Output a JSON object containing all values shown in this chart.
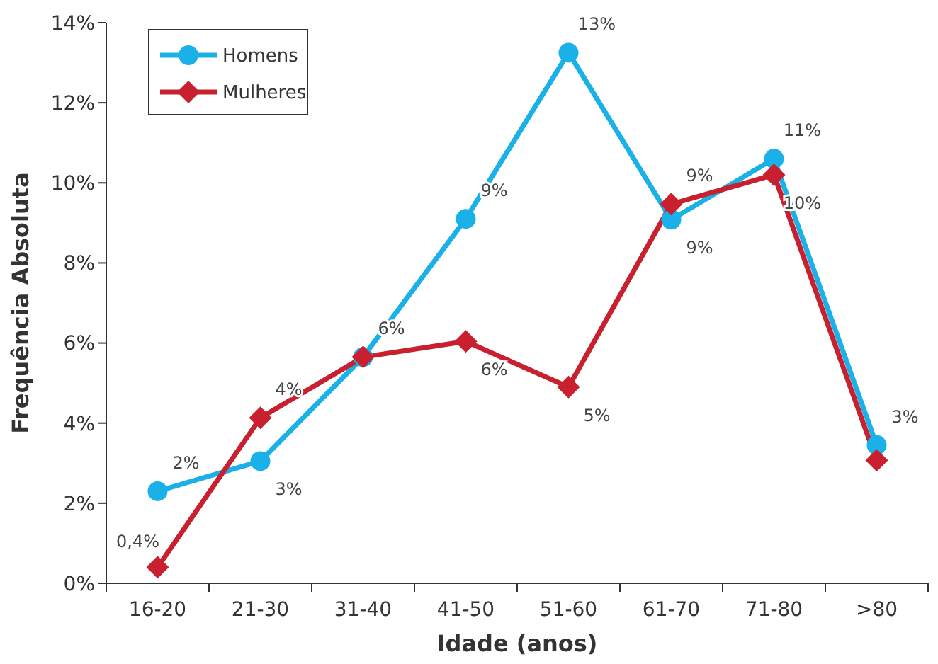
{
  "chart_data": {
    "type": "line",
    "xlabel": "Idade (anos)",
    "ylabel": "Frequência Absoluta",
    "categories": [
      "16-20",
      "21-30",
      "31-40",
      "41-50",
      "51-60",
      "61-70",
      "71-80",
      ">80"
    ],
    "series": [
      {
        "name": "Homens",
        "color": "#1ab0e8",
        "marker": "circle",
        "values": [
          2.3,
          3.05,
          5.65,
          9.1,
          13.25,
          9.08,
          10.6,
          3.45
        ],
        "value_labels": [
          "2%",
          "3%",
          "6%",
          "9%",
          "13%",
          "9%",
          "11%",
          "3%"
        ]
      },
      {
        "name": "Mulheres",
        "color": "#c8202e",
        "marker": "diamond",
        "values": [
          0.4,
          4.13,
          5.65,
          6.04,
          4.9,
          9.47,
          10.2,
          3.07
        ],
        "value_labels": [
          "0,4%",
          "4%",
          null,
          "6%",
          "5%",
          "9%",
          "10%",
          null
        ]
      }
    ],
    "ylim": [
      0,
      14
    ],
    "yticks": [
      {
        "value": 0,
        "label": "0%"
      },
      {
        "value": 2,
        "label": "2%"
      },
      {
        "value": 4,
        "label": "4%"
      },
      {
        "value": 6,
        "label": "6%"
      },
      {
        "value": 8,
        "label": "8%"
      },
      {
        "value": 10,
        "label": "10%"
      },
      {
        "value": 12,
        "label": "12%"
      },
      {
        "value": 14,
        "label": "14%"
      }
    ],
    "grid": false,
    "legend": "top left",
    "line_style": "solid"
  }
}
